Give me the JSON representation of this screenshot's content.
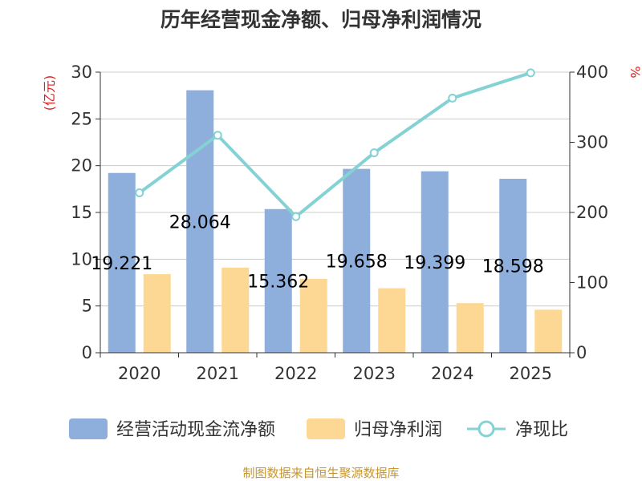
{
  "chart_data": {
    "type": "bar",
    "title": "历年经营现金净额、归母净利润情况",
    "categories": [
      "2020",
      "2021",
      "2022",
      "2023",
      "2024",
      "2025"
    ],
    "series": [
      {
        "name": "经营活动现金流净额",
        "kind": "bar",
        "axis": "left",
        "color": "#8eaedb",
        "values": [
          19.221,
          28.064,
          15.362,
          19.658,
          19.399,
          18.598
        ]
      },
      {
        "name": "归母净利润",
        "kind": "bar",
        "axis": "left",
        "color": "#fdd894",
        "values": [
          8.4,
          9.1,
          7.9,
          6.9,
          5.3,
          4.6
        ]
      },
      {
        "name": "净现比",
        "kind": "line",
        "axis": "right",
        "color": "#84d2d4",
        "values": [
          228,
          310,
          194,
          285,
          363,
          399
        ]
      }
    ],
    "data_labels": [
      "19.221",
      "28.064",
      "15.362",
      "19.658",
      "19.399",
      "18.598"
    ],
    "y_left": {
      "unit": "(亿元)",
      "ylim": [
        0,
        30
      ],
      "ticks": [
        "0",
        "5",
        "10",
        "15",
        "20",
        "25",
        "30"
      ]
    },
    "y_right": {
      "unit": "%",
      "ylim": [
        0,
        400
      ],
      "ticks": [
        "0",
        "100",
        "200",
        "300",
        "400"
      ]
    },
    "grid": true,
    "legend_position": "bottom"
  },
  "source": "制图数据来自恒生聚源数据库"
}
